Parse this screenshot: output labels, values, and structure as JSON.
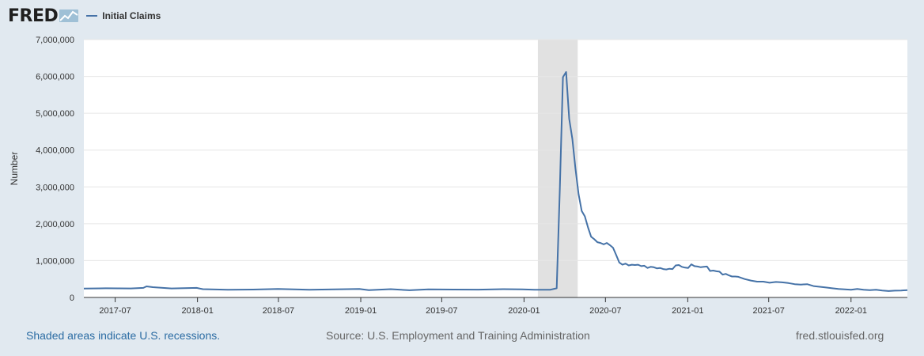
{
  "brand": {
    "logo_text": "FRED"
  },
  "legend": {
    "series_label": "Initial Claims",
    "color": "#4572a7"
  },
  "footer": {
    "recession_note": "Shaded areas indicate U.S. recessions.",
    "source": "Source: U.S. Employment and Training Administration",
    "site": "fred.stlouisfed.org"
  },
  "chart_data": {
    "type": "line",
    "ylabel": "Number",
    "ylim": [
      0,
      7000000
    ],
    "y_ticks": [
      0,
      1000000,
      2000000,
      3000000,
      4000000,
      5000000,
      6000000,
      7000000
    ],
    "y_tick_labels": [
      "0",
      "1,000,000",
      "2,000,000",
      "3,000,000",
      "4,000,000",
      "5,000,000",
      "6,000,000",
      "7,000,000"
    ],
    "x_ticks": [
      "2017-07",
      "2018-01",
      "2018-07",
      "2019-01",
      "2019-07",
      "2020-01",
      "2020-07",
      "2021-01",
      "2021-07",
      "2022-01"
    ],
    "xlim": [
      "2017-04-22",
      "2022-05-07"
    ],
    "recession": {
      "start": "2020-02-01",
      "end": "2020-04-30",
      "color": "#e1e1e1"
    },
    "grid": true,
    "legend_position": "top-left",
    "series": [
      {
        "name": "Initial Claims",
        "color": "#4572a7",
        "points": [
          [
            "2017-04-22",
            240000
          ],
          [
            "2017-06-10",
            250000
          ],
          [
            "2017-08-05",
            245000
          ],
          [
            "2017-09-02",
            260000
          ],
          [
            "2017-09-09",
            300000
          ],
          [
            "2017-09-23",
            280000
          ],
          [
            "2017-11-04",
            245000
          ],
          [
            "2017-12-30",
            260000
          ],
          [
            "2018-01-13",
            225000
          ],
          [
            "2018-03-10",
            210000
          ],
          [
            "2018-05-05",
            215000
          ],
          [
            "2018-06-30",
            230000
          ],
          [
            "2018-09-08",
            210000
          ],
          [
            "2018-11-03",
            220000
          ],
          [
            "2018-12-29",
            232000
          ],
          [
            "2019-01-19",
            200000
          ],
          [
            "2019-03-09",
            225000
          ],
          [
            "2019-04-20",
            195000
          ],
          [
            "2019-06-01",
            220000
          ],
          [
            "2019-07-27",
            215000
          ],
          [
            "2019-09-21",
            212000
          ],
          [
            "2019-11-16",
            225000
          ],
          [
            "2019-12-28",
            220000
          ],
          [
            "2020-01-25",
            210000
          ],
          [
            "2020-02-29",
            210000
          ],
          [
            "2020-03-14",
            250000
          ],
          [
            "2020-03-21",
            2900000
          ],
          [
            "2020-03-28",
            5980000
          ],
          [
            "2020-04-04",
            6120000
          ],
          [
            "2020-04-11",
            4850000
          ],
          [
            "2020-04-18",
            4300000
          ],
          [
            "2020-04-25",
            3500000
          ],
          [
            "2020-05-02",
            2800000
          ],
          [
            "2020-05-09",
            2350000
          ],
          [
            "2020-05-16",
            2200000
          ],
          [
            "2020-05-23",
            1900000
          ],
          [
            "2020-05-30",
            1650000
          ],
          [
            "2020-06-06",
            1580000
          ],
          [
            "2020-06-13",
            1500000
          ],
          [
            "2020-06-20",
            1480000
          ],
          [
            "2020-06-27",
            1440000
          ],
          [
            "2020-07-04",
            1480000
          ],
          [
            "2020-07-11",
            1420000
          ],
          [
            "2020-07-18",
            1350000
          ],
          [
            "2020-07-25",
            1150000
          ],
          [
            "2020-08-01",
            950000
          ],
          [
            "2020-08-08",
            890000
          ],
          [
            "2020-08-15",
            920000
          ],
          [
            "2020-08-22",
            870000
          ],
          [
            "2020-08-29",
            890000
          ],
          [
            "2020-09-05",
            880000
          ],
          [
            "2020-09-12",
            890000
          ],
          [
            "2020-09-19",
            850000
          ],
          [
            "2020-09-26",
            860000
          ],
          [
            "2020-10-03",
            800000
          ],
          [
            "2020-10-10",
            830000
          ],
          [
            "2020-10-17",
            820000
          ],
          [
            "2020-10-24",
            790000
          ],
          [
            "2020-10-31",
            800000
          ],
          [
            "2020-11-07",
            770000
          ],
          [
            "2020-11-14",
            760000
          ],
          [
            "2020-11-21",
            780000
          ],
          [
            "2020-11-28",
            770000
          ],
          [
            "2020-12-05",
            870000
          ],
          [
            "2020-12-12",
            880000
          ],
          [
            "2020-12-19",
            830000
          ],
          [
            "2020-12-26",
            810000
          ],
          [
            "2021-01-02",
            800000
          ],
          [
            "2021-01-09",
            900000
          ],
          [
            "2021-01-16",
            850000
          ],
          [
            "2021-01-23",
            840000
          ],
          [
            "2021-01-30",
            820000
          ],
          [
            "2021-02-06",
            830000
          ],
          [
            "2021-02-13",
            840000
          ],
          [
            "2021-02-20",
            720000
          ],
          [
            "2021-02-27",
            730000
          ],
          [
            "2021-03-06",
            710000
          ],
          [
            "2021-03-13",
            700000
          ],
          [
            "2021-03-20",
            620000
          ],
          [
            "2021-03-27",
            640000
          ],
          [
            "2021-04-03",
            600000
          ],
          [
            "2021-04-10",
            570000
          ],
          [
            "2021-04-17",
            570000
          ],
          [
            "2021-04-24",
            560000
          ],
          [
            "2021-05-08",
            500000
          ],
          [
            "2021-05-22",
            460000
          ],
          [
            "2021-06-05",
            430000
          ],
          [
            "2021-06-19",
            430000
          ],
          [
            "2021-07-03",
            400000
          ],
          [
            "2021-07-17",
            420000
          ],
          [
            "2021-07-31",
            410000
          ],
          [
            "2021-08-14",
            390000
          ],
          [
            "2021-08-28",
            360000
          ],
          [
            "2021-09-11",
            350000
          ],
          [
            "2021-09-25",
            360000
          ],
          [
            "2021-10-09",
            310000
          ],
          [
            "2021-10-23",
            290000
          ],
          [
            "2021-11-06",
            270000
          ],
          [
            "2021-11-20",
            250000
          ],
          [
            "2021-12-04",
            230000
          ],
          [
            "2021-12-18",
            220000
          ],
          [
            "2022-01-01",
            210000
          ],
          [
            "2022-01-15",
            230000
          ],
          [
            "2022-01-29",
            210000
          ],
          [
            "2022-02-12",
            200000
          ],
          [
            "2022-02-26",
            210000
          ],
          [
            "2022-03-12",
            190000
          ],
          [
            "2022-03-26",
            175000
          ],
          [
            "2022-04-09",
            185000
          ],
          [
            "2022-04-23",
            190000
          ],
          [
            "2022-05-07",
            200000
          ]
        ]
      }
    ]
  }
}
